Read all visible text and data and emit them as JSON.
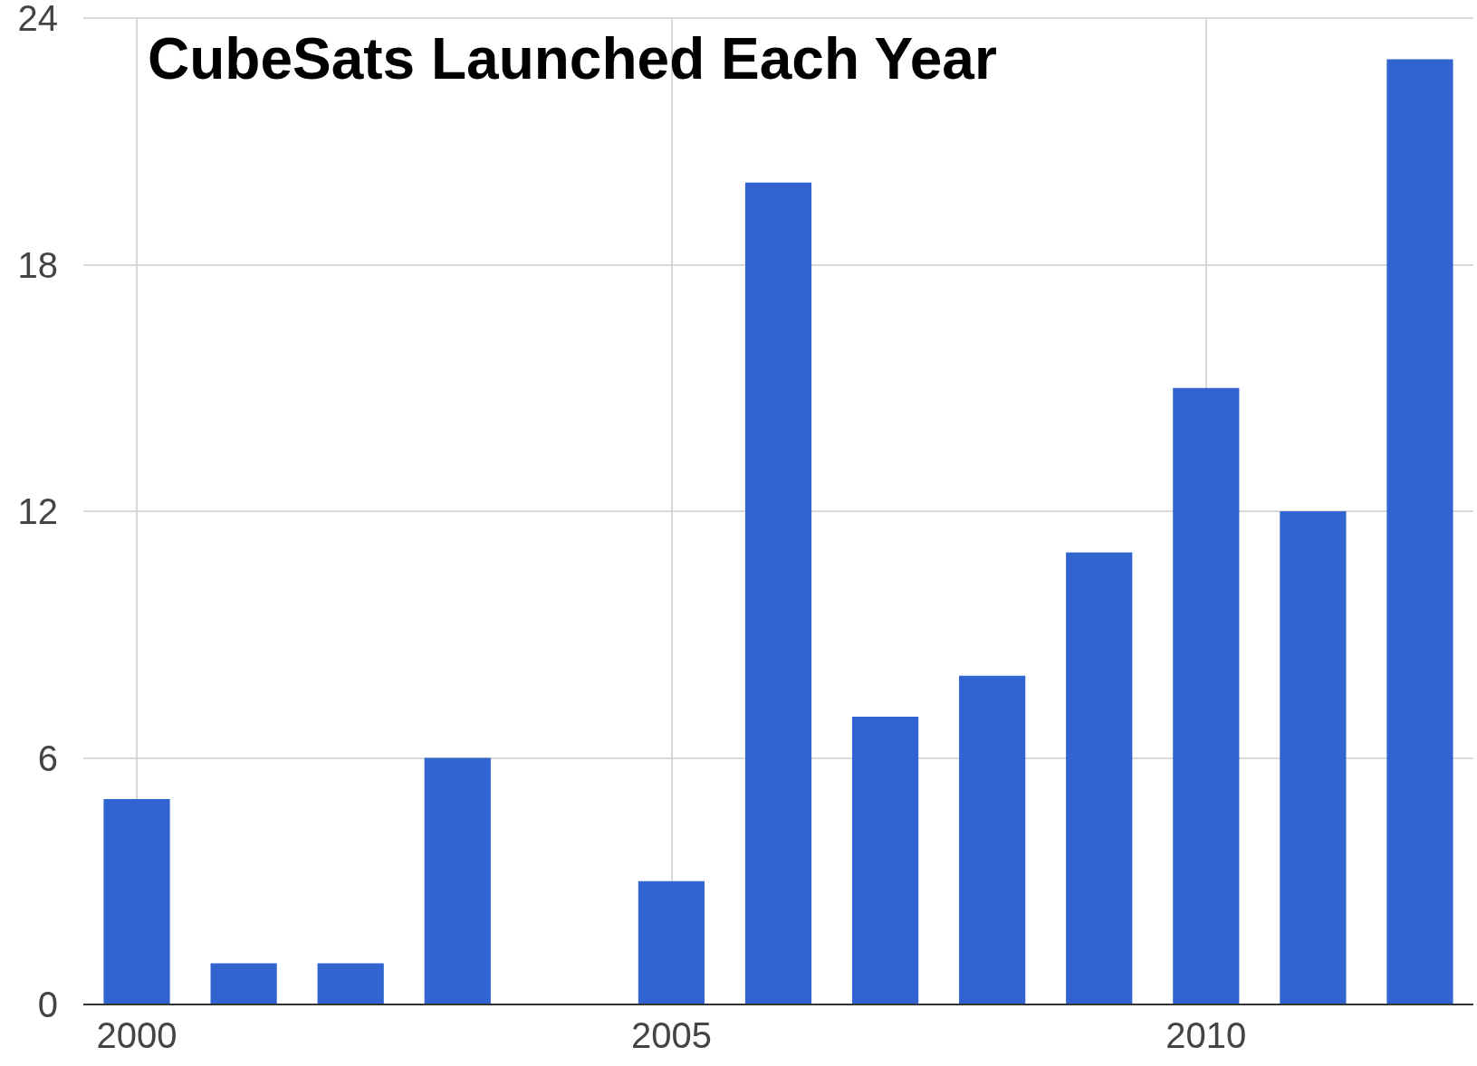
{
  "chart_data": {
    "type": "bar",
    "title": "CubeSats Launched Each Year",
    "x": [
      2000,
      2001,
      2002,
      2003,
      2004,
      2005,
      2006,
      2007,
      2008,
      2009,
      2010,
      2011,
      2012
    ],
    "values": [
      5,
      1,
      1,
      6,
      0,
      3,
      20,
      7,
      8,
      11,
      15,
      12,
      23
    ],
    "color": "#3164d0",
    "xlim": [
      1999.5,
      2012.5
    ],
    "xticks": [
      2000,
      2005,
      2010
    ],
    "ylim": [
      0,
      24
    ],
    "yticks": [
      0,
      6,
      12,
      18,
      24
    ],
    "grid": true
  }
}
